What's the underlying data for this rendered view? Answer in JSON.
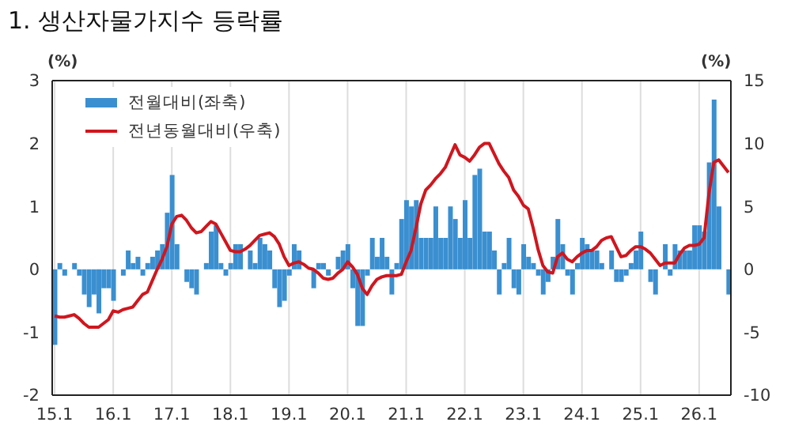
{
  "chart_data": {
    "type": "bar",
    "title": "1. 생산자물가지수 등락률",
    "ylabel": "(%)",
    "y2label": "(%)",
    "categories": [
      "15.1",
      null,
      null,
      null,
      null,
      null,
      null,
      null,
      null,
      null,
      null,
      null,
      "16.1",
      null,
      null,
      null,
      null,
      null,
      null,
      null,
      null,
      null,
      null,
      null,
      "17.1",
      null,
      null,
      null,
      null,
      null,
      null,
      null,
      null,
      null,
      null,
      null,
      "18.1",
      null,
      null,
      null,
      null,
      null,
      null,
      null,
      null,
      null,
      null,
      null,
      "19.1",
      null,
      null,
      null,
      null,
      null,
      null,
      null,
      null,
      null,
      null,
      null,
      "20.1",
      null,
      null,
      null,
      null,
      null,
      null,
      null,
      null,
      null,
      null,
      null,
      "21.1",
      null,
      null,
      null,
      null,
      null,
      null,
      null,
      null,
      null,
      null,
      null,
      "22.1",
      null,
      null,
      null,
      null,
      null,
      null,
      null,
      null,
      null,
      null,
      null,
      "23.1",
      null,
      null,
      null,
      null,
      null,
      null,
      null,
      null,
      null,
      null,
      null,
      "24.1",
      null,
      null,
      null,
      null,
      null,
      null,
      null,
      null,
      null,
      null,
      null,
      "25.1",
      null,
      null,
      null,
      null,
      null,
      null,
      null,
      null,
      null,
      null,
      null,
      "26.1",
      null,
      null,
      null,
      null,
      null,
      null
    ],
    "series": [
      {
        "name": "전월대비(좌축)",
        "color": "#3a8fd0",
        "values": [
          -1.2,
          0.1,
          -0.1,
          0.0,
          0.1,
          -0.1,
          -0.4,
          -0.6,
          -0.4,
          -0.7,
          -0.3,
          -0.3,
          -0.5,
          0.0,
          -0.1,
          0.3,
          0.1,
          0.2,
          -0.1,
          0.1,
          0.2,
          0.3,
          0.4,
          0.9,
          1.5,
          0.4,
          0.0,
          -0.2,
          -0.3,
          -0.4,
          0.0,
          0.1,
          0.6,
          0.7,
          0.1,
          -0.1,
          0.1,
          0.4,
          0.4,
          0.0,
          0.3,
          0.1,
          0.5,
          0.4,
          0.3,
          -0.3,
          -0.6,
          -0.5,
          -0.1,
          0.4,
          0.3,
          0.0,
          0.0,
          -0.3,
          0.1,
          0.1,
          -0.1,
          0.0,
          0.2,
          0.3,
          0.4,
          -0.3,
          -0.9,
          -0.9,
          -0.1,
          0.5,
          0.2,
          0.5,
          0.2,
          -0.4,
          0.1,
          0.8,
          1.1,
          1.0,
          1.1,
          0.5,
          0.5,
          0.5,
          1.0,
          0.5,
          0.5,
          1.0,
          0.8,
          0.5,
          1.1,
          0.5,
          1.5,
          1.6,
          0.6,
          0.6,
          0.3,
          -0.4,
          0.1,
          0.5,
          -0.3,
          -0.4,
          0.4,
          0.2,
          0.1,
          -0.1,
          -0.4,
          -0.2,
          0.2,
          0.8,
          0.4,
          -0.1,
          -0.4,
          0.1,
          0.5,
          0.4,
          0.3,
          0.3,
          0.1,
          0.0,
          0.3,
          -0.2,
          -0.2,
          -0.1,
          0.1,
          0.3,
          0.6,
          0.0,
          -0.2,
          -0.4,
          null,
          0.4,
          -0.1,
          0.4,
          0.3,
          0.3,
          0.3,
          0.7,
          0.7,
          0.6,
          1.7,
          2.7,
          1.0,
          0.0,
          -0.4
        ]
      },
      {
        "name": "전년동월대비(우축)",
        "type": "line",
        "axis": "y2",
        "color": "#d0161e",
        "values": [
          -3.7,
          -3.8,
          -3.8,
          -3.7,
          -3.6,
          -3.9,
          -4.3,
          -4.6,
          -4.6,
          -4.6,
          -4.3,
          -4.0,
          -3.3,
          -3.4,
          -3.2,
          -3.1,
          -3.0,
          -2.5,
          -2.0,
          -1.8,
          -0.9,
          0.0,
          0.8,
          1.8,
          3.6,
          4.2,
          4.3,
          3.9,
          3.3,
          2.9,
          3.0,
          3.4,
          3.8,
          3.6,
          2.9,
          2.2,
          1.5,
          1.4,
          1.4,
          1.6,
          1.9,
          2.3,
          2.7,
          2.8,
          2.9,
          2.6,
          2.0,
          1.0,
          0.3,
          0.5,
          0.6,
          0.4,
          0.1,
          0.0,
          -0.3,
          -0.7,
          -0.8,
          -0.7,
          -0.3,
          0.0,
          0.6,
          0.2,
          -0.4,
          -1.5,
          -2.0,
          -1.3,
          -0.8,
          -0.6,
          -0.5,
          -0.5,
          -0.5,
          -0.4,
          0.6,
          1.5,
          3.3,
          5.2,
          6.3,
          6.7,
          7.2,
          7.6,
          8.1,
          9.0,
          9.9,
          9.1,
          8.9,
          8.6,
          9.1,
          9.7,
          10.0,
          10.0,
          9.2,
          8.4,
          7.8,
          7.3,
          6.3,
          5.8,
          5.1,
          4.8,
          3.3,
          1.6,
          0.3,
          -0.2,
          -0.3,
          1.0,
          1.3,
          0.8,
          0.6,
          1.0,
          1.3,
          1.5,
          1.5,
          1.8,
          2.3,
          2.5,
          2.6,
          1.8,
          1.0,
          1.1,
          1.5,
          1.8,
          1.8,
          1.6,
          1.3,
          0.8,
          0.3,
          0.5,
          0.5,
          0.5,
          1.2,
          1.7,
          1.9,
          1.9,
          2.0,
          2.5,
          6.0,
          8.5,
          8.7,
          8.2,
          7.7
        ]
      }
    ],
    "ylim": [
      -2,
      3
    ],
    "yticks": [
      -2,
      -1,
      0,
      1,
      2,
      3
    ],
    "y2lim": [
      -10,
      15
    ],
    "y2ticks": [
      -10,
      -5,
      0,
      5,
      10,
      15
    ],
    "grid": "x",
    "legend": "top left",
    "marker": "none",
    "line_style": "solid"
  }
}
